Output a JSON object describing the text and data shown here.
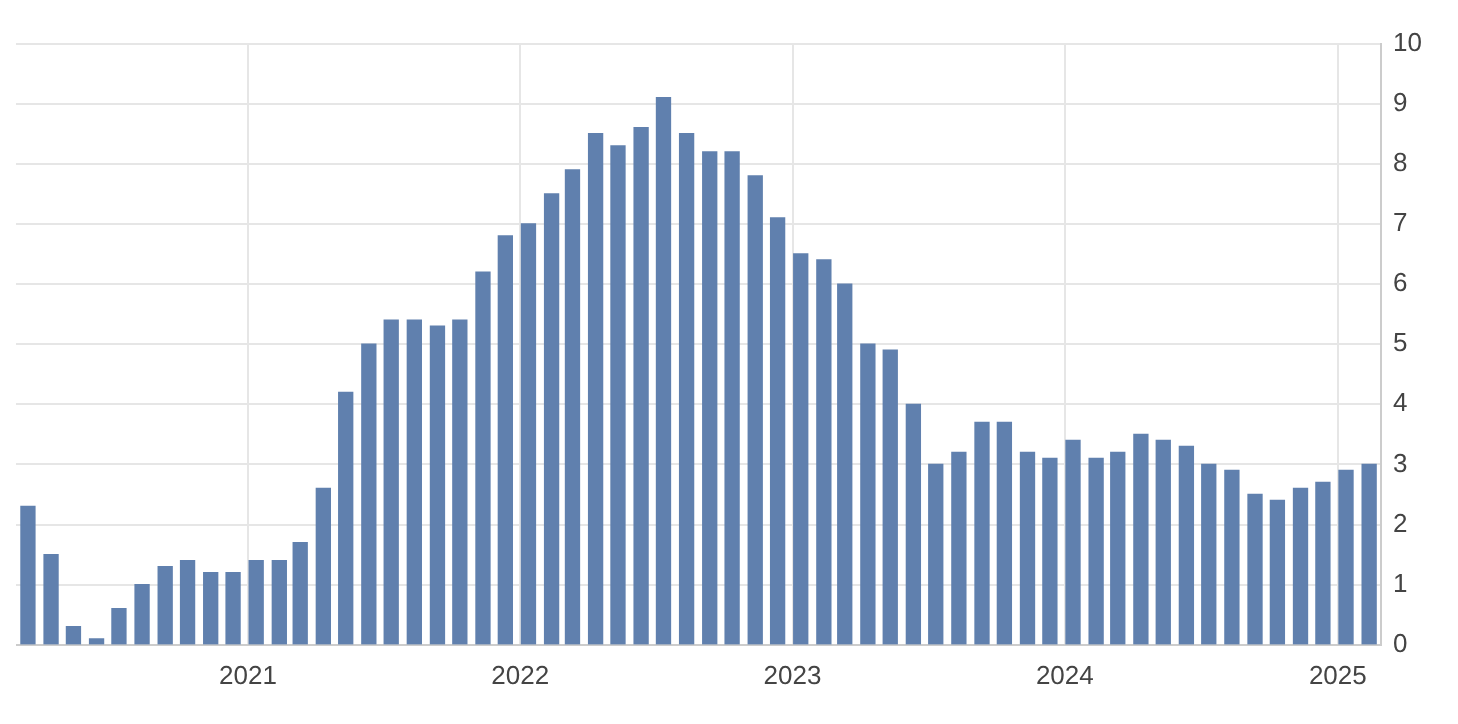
{
  "chart_data": {
    "type": "bar",
    "x": [
      "2020-03-12",
      "2020-04-12",
      "2020-05-12",
      "2020-06-12",
      "2020-07-12",
      "2020-08-12",
      "2020-09-12",
      "2020-10-12",
      "2020-11-12",
      "2020-12-12",
      "2021-01-12",
      "2021-02-12",
      "2021-03-12",
      "2021-04-12",
      "2021-05-12",
      "2021-06-12",
      "2021-07-12",
      "2021-08-12",
      "2021-09-12",
      "2021-10-12",
      "2021-11-12",
      "2021-12-12",
      "2022-01-12",
      "2022-02-12",
      "2022-03-12",
      "2022-04-12",
      "2022-05-12",
      "2022-06-12",
      "2022-07-12",
      "2022-08-12",
      "2022-09-12",
      "2022-10-12",
      "2022-11-12",
      "2022-12-12",
      "2023-01-12",
      "2023-02-12",
      "2023-03-12",
      "2023-04-12",
      "2023-05-12",
      "2023-06-12",
      "2023-07-12",
      "2023-08-12",
      "2023-09-12",
      "2023-10-12",
      "2023-11-12",
      "2023-12-12",
      "2024-01-12",
      "2024-02-12",
      "2024-03-12",
      "2024-04-12",
      "2024-05-12",
      "2024-06-12",
      "2024-07-12",
      "2024-08-12",
      "2024-09-12",
      "2024-10-12",
      "2024-11-12",
      "2024-12-12",
      "2025-01-12",
      "2025-02-12"
    ],
    "values": [
      2.3,
      1.5,
      0.3,
      0.1,
      0.6,
      1.0,
      1.3,
      1.4,
      1.2,
      1.2,
      1.4,
      1.4,
      1.7,
      2.6,
      4.2,
      5.0,
      5.4,
      5.4,
      5.3,
      5.4,
      6.2,
      6.8,
      7.0,
      7.5,
      7.9,
      8.5,
      8.3,
      8.6,
      9.1,
      8.5,
      8.2,
      8.2,
      7.8,
      7.1,
      6.5,
      6.4,
      6.0,
      5.0,
      4.9,
      4.0,
      3.0,
      3.2,
      3.7,
      3.7,
      3.2,
      3.1,
      3.4,
      3.1,
      3.2,
      3.5,
      3.4,
      3.3,
      3.0,
      2.9,
      2.5,
      2.4,
      2.6,
      2.7,
      2.9,
      3.0
    ],
    "color": "#6080ae",
    "xlim": [
      "2020-02-25",
      "2025-02-28"
    ],
    "xticks": [
      {
        "value": "2021-01-01",
        "label": "2021"
      },
      {
        "value": "2022-01-01",
        "label": "2022"
      },
      {
        "value": "2023-01-01",
        "label": "2023"
      },
      {
        "value": "2024-01-01",
        "label": "2024"
      },
      {
        "value": "2025-01-01",
        "label": "2025"
      }
    ],
    "ylim": [
      0,
      10
    ],
    "yticks": [
      0,
      1,
      2,
      3,
      4,
      5,
      6,
      7,
      8,
      9,
      10
    ],
    "grid": true
  }
}
